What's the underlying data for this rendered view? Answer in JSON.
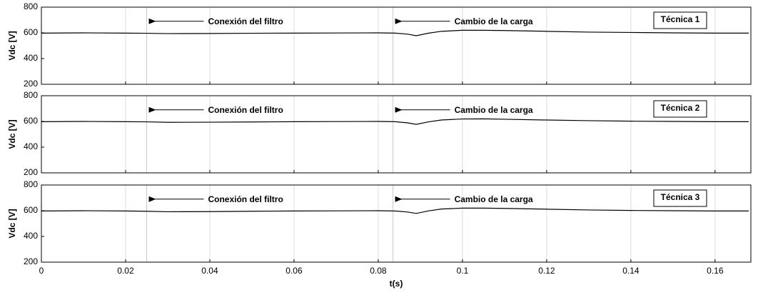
{
  "chart_data": [
    {
      "type": "line",
      "ylabel": "Vdc [V]",
      "label": "Técnica 1",
      "color": "#000000",
      "x": [
        0,
        0.01,
        0.02,
        0.025,
        0.03,
        0.04,
        0.05,
        0.06,
        0.07,
        0.08,
        0.084,
        0.087,
        0.089,
        0.092,
        0.095,
        0.1,
        0.105,
        0.11,
        0.12,
        0.13,
        0.14,
        0.15,
        0.16,
        0.168
      ],
      "values": [
        598,
        600,
        598,
        597,
        594,
        595,
        597,
        598,
        599,
        600,
        598,
        590,
        578,
        598,
        612,
        620,
        620,
        618,
        612,
        606,
        603,
        600,
        598,
        598
      ],
      "xlim": [
        0,
        0.1685
      ],
      "xticks": [
        0,
        0.02,
        0.04,
        0.06,
        0.08,
        0.1,
        0.12,
        0.14,
        0.16
      ],
      "ylim": [
        200,
        800
      ],
      "yticks": [
        200,
        400,
        600,
        800
      ],
      "vlines": [
        0.025,
        0.0835
      ],
      "annotations": [
        "Conexión del filtro",
        "Cambio de la carga"
      ],
      "grid": true
    },
    {
      "type": "line",
      "ylabel": "Vdc [V]",
      "label": "Técnica 2",
      "color": "#000000",
      "x": [
        0,
        0.01,
        0.02,
        0.025,
        0.03,
        0.04,
        0.05,
        0.06,
        0.07,
        0.08,
        0.084,
        0.087,
        0.089,
        0.092,
        0.095,
        0.1,
        0.105,
        0.11,
        0.12,
        0.13,
        0.14,
        0.15,
        0.16,
        0.168
      ],
      "values": [
        598,
        600,
        598,
        597,
        593,
        594,
        596,
        598,
        599,
        600,
        598,
        589,
        577,
        597,
        611,
        619,
        620,
        617,
        611,
        606,
        602,
        600,
        598,
        598
      ],
      "xlim": [
        0,
        0.1685
      ],
      "xticks": [
        0,
        0.02,
        0.04,
        0.06,
        0.08,
        0.1,
        0.12,
        0.14,
        0.16
      ],
      "ylim": [
        200,
        800
      ],
      "yticks": [
        200,
        400,
        600,
        800
      ],
      "vlines": [
        0.025,
        0.0835
      ],
      "annotations": [
        "Conexión del filtro",
        "Cambio de la carga"
      ],
      "grid": true
    },
    {
      "type": "line",
      "ylabel": "Vdc [V]",
      "label": "Técnica 3",
      "xlabel": "t(s)",
      "color": "#000000",
      "x": [
        0,
        0.01,
        0.02,
        0.025,
        0.03,
        0.04,
        0.05,
        0.06,
        0.07,
        0.08,
        0.084,
        0.087,
        0.089,
        0.092,
        0.095,
        0.1,
        0.105,
        0.11,
        0.12,
        0.13,
        0.14,
        0.15,
        0.16,
        0.168
      ],
      "values": [
        598,
        600,
        598,
        596,
        592,
        593,
        596,
        598,
        599,
        600,
        598,
        590,
        579,
        599,
        613,
        620,
        620,
        618,
        612,
        606,
        602,
        600,
        598,
        598
      ],
      "xlim": [
        0,
        0.1685
      ],
      "xticks": [
        0,
        0.02,
        0.04,
        0.06,
        0.08,
        0.1,
        0.12,
        0.14,
        0.16
      ],
      "ylim": [
        200,
        800
      ],
      "yticks": [
        200,
        400,
        600,
        800
      ],
      "vlines": [
        0.025,
        0.0835
      ],
      "annotations": [
        "Conexión del filtro",
        "Cambio de la carga"
      ],
      "grid": true
    }
  ]
}
